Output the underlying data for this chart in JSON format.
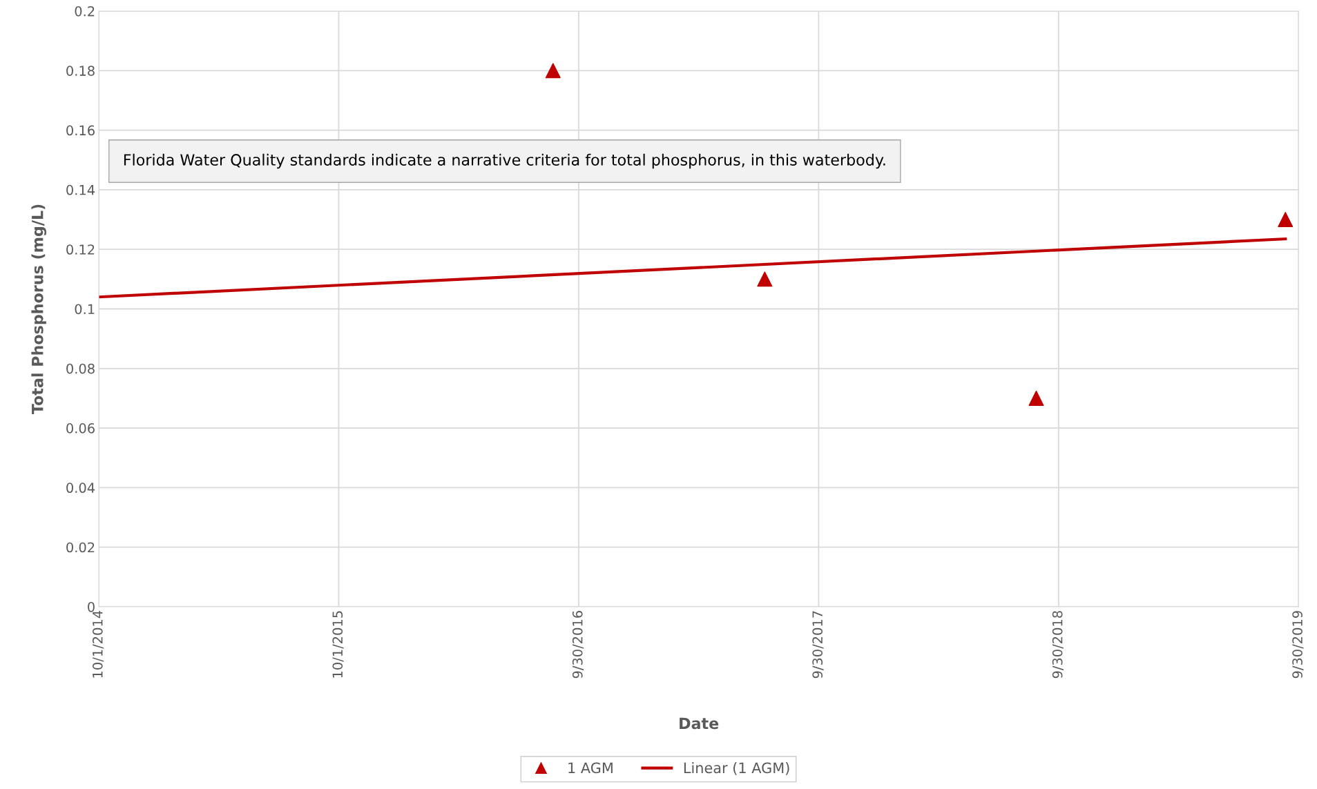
{
  "chart_data": {
    "type": "scatter",
    "xlabel": "Date",
    "ylabel": "Total Phosphorus (mg/L)",
    "annotations": [
      "Florida Water Quality standards indicate a narrative criteria for total phosphorus, in this waterbody."
    ],
    "series": [
      {
        "name": "1 AGM",
        "color": "#c00000",
        "marker": "triangle",
        "x": [
          "2016-08-22",
          "2017-07-10",
          "2018-08-27",
          "2019-09-10"
        ],
        "values": [
          0.18,
          0.11,
          0.07,
          0.13
        ]
      },
      {
        "name": "Linear (1 AGM)",
        "type": "line",
        "color": "#c00000",
        "marker": "none",
        "line_style": "solid",
        "x": [
          "2014-10-01",
          "2019-09-10"
        ],
        "values": [
          0.104,
          0.1235
        ]
      }
    ],
    "xlim": [
      "2014-10-01",
      "2019-09-30"
    ],
    "xticks": [
      {
        "value": "2014-10-01",
        "label": "10/1/2014"
      },
      {
        "value": "2015-10-01",
        "label": "10/1/2015"
      },
      {
        "value": "2016-09-30",
        "label": "9/30/2016"
      },
      {
        "value": "2017-09-30",
        "label": "9/30/2017"
      },
      {
        "value": "2018-09-30",
        "label": "9/30/2018"
      },
      {
        "value": "2019-09-30",
        "label": "9/30/2019"
      }
    ],
    "ylim": [
      0,
      0.2
    ],
    "yticks": [
      0,
      0.02,
      0.04,
      0.06,
      0.08,
      0.1,
      0.12,
      0.14,
      0.16,
      0.18,
      0.2
    ],
    "grid": true,
    "legend": "bottom"
  }
}
